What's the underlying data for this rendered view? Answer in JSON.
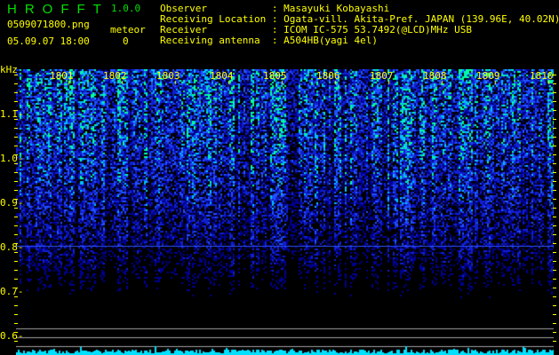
{
  "app": {
    "title": "HROFFT",
    "version": "1.0.0"
  },
  "file": {
    "name": "0509071800.png",
    "datetime": "05.09.07 18:00"
  },
  "meteor": {
    "label": "meteor",
    "count": "0"
  },
  "info": [
    {
      "label": "Observer",
      "value": "Masayuki Kobayashi"
    },
    {
      "label": "Receiving Location",
      "value": "Ogata-vill. Akita-Pref. JAPAN (139.96E, 40.02N)"
    },
    {
      "label": "Receiver",
      "value": "ICOM IC-575 53.7492(@LCD)MHz USB"
    },
    {
      "label": "Receiving antenna",
      "value": "A504HB(yagi 4el)"
    }
  ],
  "spectrogram": {
    "unit": "kHz",
    "freq_ticks": [
      "1.1",
      "1.0",
      "0.9",
      "0.8",
      "0.7",
      "0.6"
    ],
    "time_ticks": [
      "1801",
      "1802",
      "1803",
      "1804",
      "1805",
      "1806",
      "1807",
      "1808",
      "1809",
      "1810"
    ],
    "colors": {
      "background": "#000000",
      "signal_low": "#0000a0",
      "signal_mid": "#2060ff",
      "signal_high": "#00ffc0",
      "histogram": "#00e0ff",
      "text": "#ffff00",
      "title": "#00e000"
    }
  }
}
